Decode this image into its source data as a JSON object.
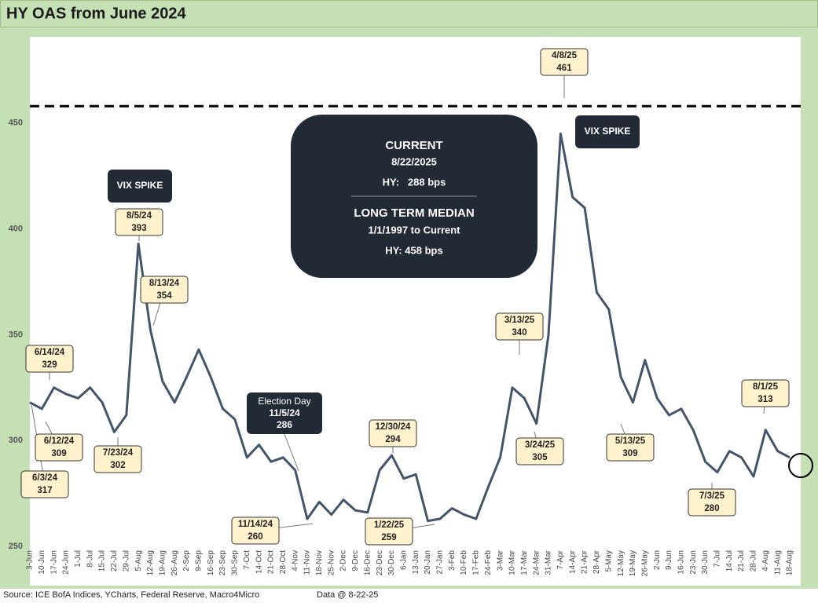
{
  "chart_data": {
    "type": "line",
    "title": "HY OAS from June 2024",
    "categories": [
      "3-Jun",
      "10-Jun",
      "17-Jun",
      "24-Jun",
      "1-Jul",
      "8-Jul",
      "15-Jul",
      "22-Jul",
      "29-Jul",
      "5-Aug",
      "12-Aug",
      "19-Aug",
      "26-Aug",
      "2-Sep",
      "9-Sep",
      "16-Sep",
      "23-Sep",
      "30-Sep",
      "7-Oct",
      "14-Oct",
      "21-Oct",
      "28-Oct",
      "4-Nov",
      "11-Nov",
      "18-Nov",
      "25-Nov",
      "2-Dec",
      "9-Dec",
      "16-Dec",
      "23-Dec",
      "30-Dec",
      "6-Jan",
      "13-Jan",
      "20-Jan",
      "27-Jan",
      "3-Feb",
      "10-Feb",
      "17-Feb",
      "24-Feb",
      "3-Mar",
      "10-Mar",
      "17-Mar",
      "24-Mar",
      "31-Mar",
      "7-Apr",
      "14-Apr",
      "21-Apr",
      "28-Apr",
      "5-May",
      "12-May",
      "19-May",
      "26-May",
      "2-Jun",
      "9-Jun",
      "16-Jun",
      "23-Jun",
      "30-Jun",
      "7-Jul",
      "14-Jul",
      "21-Jul",
      "28-Jul",
      "4-Aug",
      "11-Aug",
      "18-Aug"
    ],
    "values": [
      318,
      315,
      325,
      322,
      320,
      325,
      318,
      304,
      312,
      393,
      352,
      328,
      318,
      330,
      343,
      330,
      315,
      310,
      292,
      298,
      290,
      292,
      286,
      263,
      271,
      265,
      272,
      267,
      266,
      286,
      293,
      282,
      284,
      262,
      263,
      268,
      265,
      263,
      278,
      292,
      325,
      320,
      308,
      350,
      445,
      415,
      410,
      370,
      362,
      330,
      318,
      338,
      320,
      312,
      315,
      305,
      290,
      285,
      295,
      292,
      283,
      305,
      295,
      292
    ],
    "color": "#44546a",
    "ylim": [
      250,
      490
    ],
    "yticks": [
      250,
      300,
      350,
      400,
      450
    ],
    "reference_line": {
      "value": 458
    },
    "annotations": [
      {
        "label": "6/3/24",
        "value": 317
      },
      {
        "label": "6/12/24",
        "value": 309
      },
      {
        "label": "6/14/24",
        "value": 329
      },
      {
        "label": "7/23/24",
        "value": 302
      },
      {
        "label": "8/5/24",
        "value": 393
      },
      {
        "label": "8/13/24",
        "value": 354
      },
      {
        "label": "11/14/24",
        "value": 260
      },
      {
        "label": "12/30/24",
        "value": 294
      },
      {
        "label": "1/22/25",
        "value": 259
      },
      {
        "label": "3/13/25",
        "value": 340
      },
      {
        "label": "3/24/25",
        "value": 305
      },
      {
        "label": "4/8/25",
        "value": 461
      },
      {
        "label": "5/13/25",
        "value": 309
      },
      {
        "label": "7/3/25",
        "value": 280
      },
      {
        "label": "8/1/25",
        "value": 313
      }
    ],
    "notes": [
      "VIX SPIKE",
      "VIX SPIKE"
    ],
    "election": {
      "label": "Election Day",
      "date": "11/5/24",
      "value": 286
    },
    "info_box": {
      "current_title": "CURRENT",
      "current_date": "8/22/2025",
      "current_value": "HY:   288 bps",
      "median_title": "LONG TERM MEDIAN",
      "median_period": "1/1/1997 to Current",
      "median_value": "HY: 458 bps"
    },
    "source": "Source: ICE BofA Indices, YCharts, Federal Reserve, Macro4Micro",
    "data_date": "Data @ 8-22-25"
  }
}
